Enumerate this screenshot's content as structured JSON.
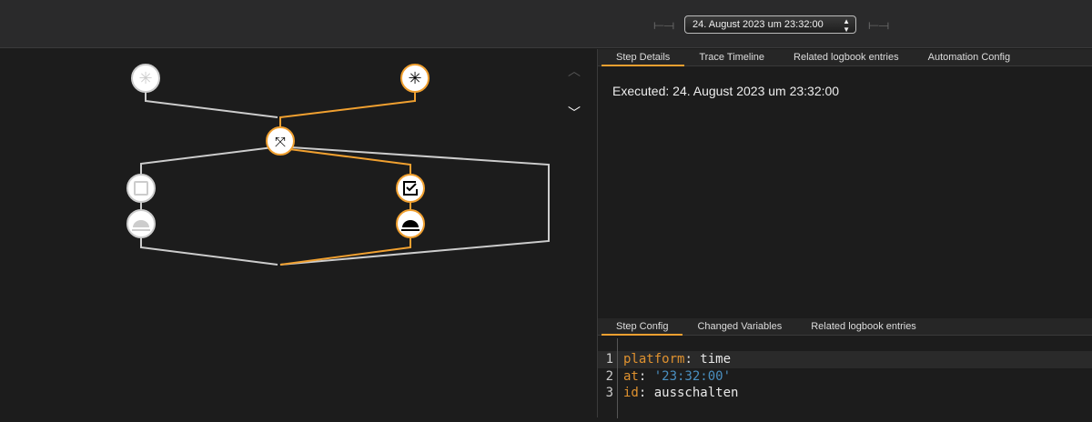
{
  "header": {
    "date_picker": "24. August 2023 um 23:32:00",
    "prev_icon": "arrow-left-line",
    "next_icon": "arrow-right-line"
  },
  "graph": {
    "nodes": [
      {
        "id": "trigger-1",
        "icon": "asterisk",
        "active": false
      },
      {
        "id": "trigger-2",
        "icon": "asterisk",
        "active": true
      },
      {
        "id": "choose",
        "icon": "call-split",
        "active": true
      },
      {
        "id": "condition-1",
        "icon": "checkbox-blank",
        "active": false
      },
      {
        "id": "action-1",
        "icon": "room-service",
        "active": false
      },
      {
        "id": "condition-2",
        "icon": "checkbox-marked",
        "active": true
      },
      {
        "id": "action-2",
        "icon": "room-service",
        "active": true
      }
    ],
    "colors": {
      "active": "#f0a030",
      "inactive": "#cccccc"
    }
  },
  "details": {
    "tabs": [
      "Step Details",
      "Trace Timeline",
      "Related logbook entries",
      "Automation Config"
    ],
    "active_tab": 0,
    "executed": "Executed: 24. August 2023 um 23:32:00"
  },
  "config": {
    "tabs": [
      "Step Config",
      "Changed Variables",
      "Related logbook entries"
    ],
    "active_tab": 0,
    "lines": [
      {
        "n": "1",
        "key": "platform",
        "value": "time"
      },
      {
        "n": "2",
        "key": "at",
        "value": "'23:32:00'"
      },
      {
        "n": "3",
        "key": "id",
        "value": "ausschalten"
      }
    ]
  }
}
